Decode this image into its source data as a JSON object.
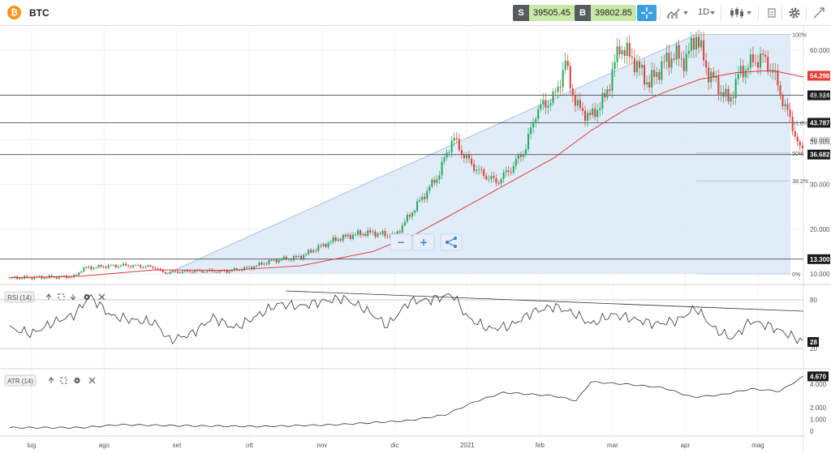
{
  "header": {
    "logo_glyph": "₿",
    "symbol": "BTC",
    "sell_label": "S",
    "sell_price": "39505.45",
    "buy_label": "B",
    "buy_price": "39802.85",
    "timeframe": "1D",
    "icons": [
      "crosshair-icon",
      "chart-type-icon",
      "candles-icon",
      "gear-icon",
      "draw-icon",
      "fullscreen-icon"
    ],
    "colors": {
      "sell_tag": "#555b5f",
      "price_bg": "#c9e8a8",
      "accent": "#3b9fe0"
    }
  },
  "zoom_controls": {
    "minus": "−",
    "plus": "+",
    "share_icon": "share-icon"
  },
  "chart_data": {
    "type": "candlestick",
    "x_ticks": [
      "lug",
      "ago",
      "set",
      "ott",
      "nov",
      "dic",
      "2021",
      "feb",
      "mar",
      "apr",
      "mag"
    ],
    "y_ticks": [
      "60.000",
      "50.000",
      "40.000",
      "30.000",
      "20.000",
      "10.000"
    ],
    "y_tick_values": [
      60000,
      50000,
      40000,
      30000,
      20000,
      10000
    ],
    "price_series": [
      {
        "m": 0.0,
        "p": 9100
      },
      {
        "m": 0.5,
        "p": 9250
      },
      {
        "m": 0.9,
        "p": 9400
      },
      {
        "m": 1.0,
        "p": 11200
      },
      {
        "m": 1.3,
        "p": 11700
      },
      {
        "m": 1.6,
        "p": 11900
      },
      {
        "m": 2.0,
        "p": 11500
      },
      {
        "m": 2.1,
        "p": 10300
      },
      {
        "m": 2.5,
        "p": 10600
      },
      {
        "m": 3.0,
        "p": 10600
      },
      {
        "m": 3.3,
        "p": 11400
      },
      {
        "m": 3.6,
        "p": 12900
      },
      {
        "m": 4.0,
        "p": 13800
      },
      {
        "m": 4.2,
        "p": 15500
      },
      {
        "m": 4.5,
        "p": 17800
      },
      {
        "m": 4.8,
        "p": 19000
      },
      {
        "m": 5.0,
        "p": 19200
      },
      {
        "m": 5.3,
        "p": 18400
      },
      {
        "m": 5.5,
        "p": 23000
      },
      {
        "m": 5.7,
        "p": 27500
      },
      {
        "m": 5.9,
        "p": 32000
      },
      {
        "m": 6.1,
        "p": 40500
      },
      {
        "m": 6.25,
        "p": 36500
      },
      {
        "m": 6.45,
        "p": 33000
      },
      {
        "m": 6.7,
        "p": 30500
      },
      {
        "m": 6.9,
        "p": 33500
      },
      {
        "m": 7.1,
        "p": 38000
      },
      {
        "m": 7.25,
        "p": 46500
      },
      {
        "m": 7.5,
        "p": 49500
      },
      {
        "m": 7.65,
        "p": 57000
      },
      {
        "m": 7.8,
        "p": 47500
      },
      {
        "m": 8.0,
        "p": 45000
      },
      {
        "m": 8.2,
        "p": 49500
      },
      {
        "m": 8.4,
        "p": 61000
      },
      {
        "m": 8.6,
        "p": 57500
      },
      {
        "m": 8.8,
        "p": 52500
      },
      {
        "m": 9.0,
        "p": 57000
      },
      {
        "m": 9.15,
        "p": 59000
      },
      {
        "m": 9.3,
        "p": 57500
      },
      {
        "m": 9.45,
        "p": 63500
      },
      {
        "m": 9.6,
        "p": 55500
      },
      {
        "m": 9.75,
        "p": 52000
      },
      {
        "m": 9.9,
        "p": 48500
      },
      {
        "m": 10.05,
        "p": 55000
      },
      {
        "m": 10.2,
        "p": 57000
      },
      {
        "m": 10.35,
        "p": 58500
      },
      {
        "m": 10.5,
        "p": 55500
      },
      {
        "m": 10.65,
        "p": 48500
      },
      {
        "m": 10.8,
        "p": 42000
      },
      {
        "m": 10.9,
        "p": 36500
      },
      {
        "m": 10.93,
        "p": 39505
      }
    ],
    "ma_series": [
      {
        "m": 0.0,
        "p": 9150
      },
      {
        "m": 1.0,
        "p": 9500
      },
      {
        "m": 2.0,
        "p": 10900
      },
      {
        "m": 3.0,
        "p": 10800
      },
      {
        "m": 4.0,
        "p": 11800
      },
      {
        "m": 5.0,
        "p": 15000
      },
      {
        "m": 5.6,
        "p": 19000
      },
      {
        "m": 6.0,
        "p": 22500
      },
      {
        "m": 6.5,
        "p": 27000
      },
      {
        "m": 7.0,
        "p": 31500
      },
      {
        "m": 7.5,
        "p": 36000
      },
      {
        "m": 8.0,
        "p": 42000
      },
      {
        "m": 8.5,
        "p": 47000
      },
      {
        "m": 9.0,
        "p": 50500
      },
      {
        "m": 9.5,
        "p": 53500
      },
      {
        "m": 10.0,
        "p": 55000
      },
      {
        "m": 10.5,
        "p": 55500
      },
      {
        "m": 10.93,
        "p": 54000
      }
    ],
    "horizontal_lines": [
      {
        "value": 49924,
        "label": "49.924"
      },
      {
        "value": 43787,
        "label": "43.787"
      },
      {
        "value": 36682,
        "label": "36.682"
      },
      {
        "value": 13300,
        "label": "13.300"
      }
    ],
    "fib_levels": [
      {
        "value": 63500,
        "label": "100%"
      },
      {
        "value": 43787,
        "label": "61.8%"
      },
      {
        "value": 37000,
        "label": "50%"
      },
      {
        "value": 30800,
        "label": "38.2%"
      },
      {
        "value": 10000,
        "label": "0%"
      }
    ],
    "current_price_label": "39.505,4",
    "current_price_value": 39505,
    "ma_label": "54.298",
    "ma_label_value": 54298,
    "colors": {
      "up": "#26a65b",
      "down": "#d9413a",
      "ma": "#e53935",
      "fib_fill": "#dce9f8",
      "current": "#5aa9e6",
      "ma_tag": "#e53935"
    }
  },
  "rsi": {
    "title": "RSI (14)",
    "levels": [
      "80",
      "20"
    ],
    "level_values": [
      80,
      20
    ],
    "current": "28",
    "current_value": 28,
    "series": [
      {
        "m": 0.0,
        "v": 45
      },
      {
        "m": 0.3,
        "v": 38
      },
      {
        "m": 0.6,
        "v": 52
      },
      {
        "m": 0.9,
        "v": 62
      },
      {
        "m": 1.1,
        "v": 85
      },
      {
        "m": 1.4,
        "v": 60
      },
      {
        "m": 1.7,
        "v": 55
      },
      {
        "m": 2.0,
        "v": 52
      },
      {
        "m": 2.2,
        "v": 30
      },
      {
        "m": 2.5,
        "v": 38
      },
      {
        "m": 2.8,
        "v": 58
      },
      {
        "m": 3.1,
        "v": 45
      },
      {
        "m": 3.4,
        "v": 60
      },
      {
        "m": 3.7,
        "v": 75
      },
      {
        "m": 4.0,
        "v": 72
      },
      {
        "m": 4.3,
        "v": 78
      },
      {
        "m": 4.6,
        "v": 82
      },
      {
        "m": 4.9,
        "v": 68
      },
      {
        "m": 5.2,
        "v": 48
      },
      {
        "m": 5.5,
        "v": 78
      },
      {
        "m": 5.8,
        "v": 80
      },
      {
        "m": 6.1,
        "v": 87
      },
      {
        "m": 6.3,
        "v": 58
      },
      {
        "m": 6.6,
        "v": 44
      },
      {
        "m": 6.9,
        "v": 48
      },
      {
        "m": 7.2,
        "v": 65
      },
      {
        "m": 7.5,
        "v": 72
      },
      {
        "m": 7.8,
        "v": 62
      },
      {
        "m": 8.0,
        "v": 50
      },
      {
        "m": 8.3,
        "v": 62
      },
      {
        "m": 8.6,
        "v": 56
      },
      {
        "m": 8.9,
        "v": 50
      },
      {
        "m": 9.2,
        "v": 55
      },
      {
        "m": 9.45,
        "v": 70
      },
      {
        "m": 9.7,
        "v": 44
      },
      {
        "m": 9.95,
        "v": 32
      },
      {
        "m": 10.2,
        "v": 54
      },
      {
        "m": 10.45,
        "v": 48
      },
      {
        "m": 10.7,
        "v": 38
      },
      {
        "m": 10.93,
        "v": 28
      }
    ]
  },
  "atr": {
    "title": "ATR (14)",
    "ticks": [
      "4.000",
      "2.000",
      "1.000",
      "0"
    ],
    "tick_values": [
      4000,
      2000,
      1000,
      0
    ],
    "current": "4.670",
    "current_value": 4670,
    "series": [
      {
        "m": 0.0,
        "v": 300
      },
      {
        "m": 1.0,
        "v": 300
      },
      {
        "m": 1.5,
        "v": 550
      },
      {
        "m": 2.5,
        "v": 450
      },
      {
        "m": 3.5,
        "v": 400
      },
      {
        "m": 4.5,
        "v": 550
      },
      {
        "m": 5.5,
        "v": 900
      },
      {
        "m": 6.0,
        "v": 1400
      },
      {
        "m": 6.4,
        "v": 2500
      },
      {
        "m": 6.8,
        "v": 3300
      },
      {
        "m": 7.5,
        "v": 3000
      },
      {
        "m": 7.8,
        "v": 2600
      },
      {
        "m": 8.0,
        "v": 4200
      },
      {
        "m": 8.5,
        "v": 4000
      },
      {
        "m": 9.0,
        "v": 3700
      },
      {
        "m": 9.4,
        "v": 2900
      },
      {
        "m": 9.8,
        "v": 3100
      },
      {
        "m": 10.2,
        "v": 3600
      },
      {
        "m": 10.6,
        "v": 3400
      },
      {
        "m": 10.93,
        "v": 4670
      }
    ]
  }
}
